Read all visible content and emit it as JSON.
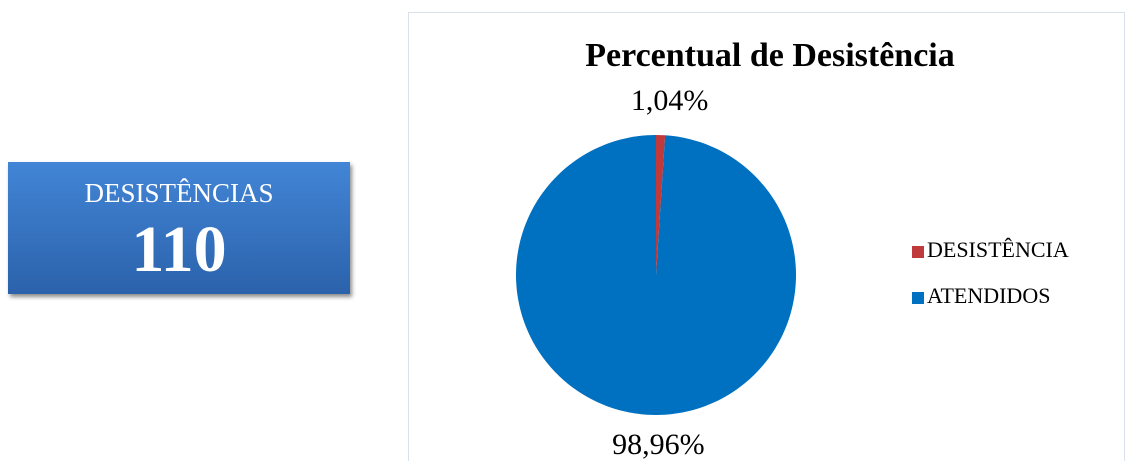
{
  "card": {
    "label": "DESISTÊNCIAS",
    "value": 110
  },
  "chart_data": {
    "type": "pie",
    "title": "Percentual de Desistência",
    "categories": [
      "DESISTÊNCIA",
      "ATENDIDOS"
    ],
    "values": [
      1.04,
      98.96
    ],
    "value_labels": [
      "1,04%",
      "98,96%"
    ],
    "colors": [
      "#c0393b",
      "#0070c0"
    ],
    "legend": "right"
  }
}
